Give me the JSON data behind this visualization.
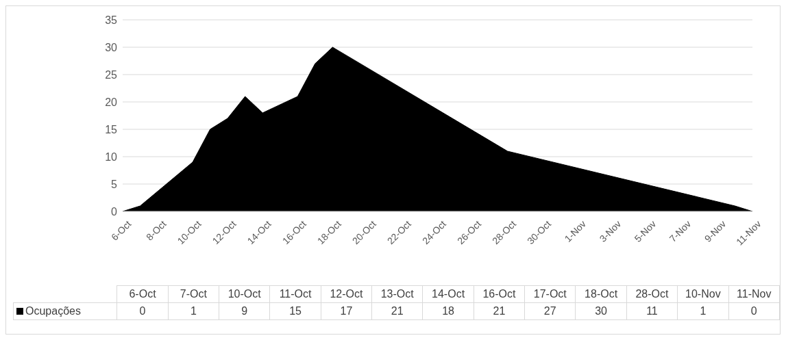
{
  "chart_data": [
    {
      "type": "area",
      "x": [
        "--10-06",
        "--10-07",
        "--10-10",
        "--10-11",
        "--10-12",
        "--10-13",
        "--10-14",
        "--10-16",
        "--10-17",
        "--10-18",
        "--10-28",
        "--11-10",
        "--11-11"
      ],
      "series": [
        {
          "color": "#000000",
          "values": [
            0,
            1,
            9,
            15,
            17,
            21,
            18,
            21,
            27,
            30,
            11,
            1,
            0
          ]
        }
      ],
      "xlim": [
        "--10-06",
        "--11-11"
      ],
      "xticks": [
        {
          "value": "--10-06",
          "label": "6-Oct"
        },
        {
          "value": "--10-08",
          "label": "8-Oct"
        },
        {
          "value": "--10-10",
          "label": "10-Oct"
        },
        {
          "value": "--10-12",
          "label": "12-Oct"
        },
        {
          "value": "--10-14",
          "label": "14-Oct"
        },
        {
          "value": "--10-16",
          "label": "16-Oct"
        },
        {
          "value": "--10-18",
          "label": "18-Oct"
        },
        {
          "value": "--10-20",
          "label": "20-Oct"
        },
        {
          "value": "--10-22",
          "label": "22-Oct"
        },
        {
          "value": "--10-24",
          "label": "24-Oct"
        },
        {
          "value": "--10-26",
          "label": "26-Oct"
        },
        {
          "value": "--10-28",
          "label": "28-Oct"
        },
        {
          "value": "--10-30",
          "label": "30-Oct"
        },
        {
          "value": "--11-01",
          "label": "1-Nov"
        },
        {
          "value": "--11-03",
          "label": "3-Nov"
        },
        {
          "value": "--11-05",
          "label": "5-Nov"
        },
        {
          "value": "--11-07",
          "label": "7-Nov"
        },
        {
          "value": "--11-09",
          "label": "9-Nov"
        },
        {
          "value": "--11-11",
          "label": "11-Nov"
        }
      ],
      "ylim": [
        0,
        35
      ],
      "yticks": [
        0,
        5,
        10,
        15,
        20,
        25,
        30,
        35
      ],
      "grid": "y"
    },
    {
      "type": "other",
      "categories": [
        "6-Oct",
        "7-Oct",
        "10-Oct",
        "11-Oct",
        "12-Oct",
        "13-Oct",
        "14-Oct",
        "16-Oct",
        "17-Oct",
        "18-Oct",
        "28-Oct",
        "10-Nov",
        "11-Nov"
      ],
      "series": [
        {
          "name": "Ocupações",
          "color": "#000000",
          "values": [
            0,
            1,
            9,
            15,
            17,
            21,
            18,
            21,
            27,
            30,
            11,
            1,
            0
          ]
        }
      ],
      "legend": "left",
      "data_labels": true
    }
  ]
}
